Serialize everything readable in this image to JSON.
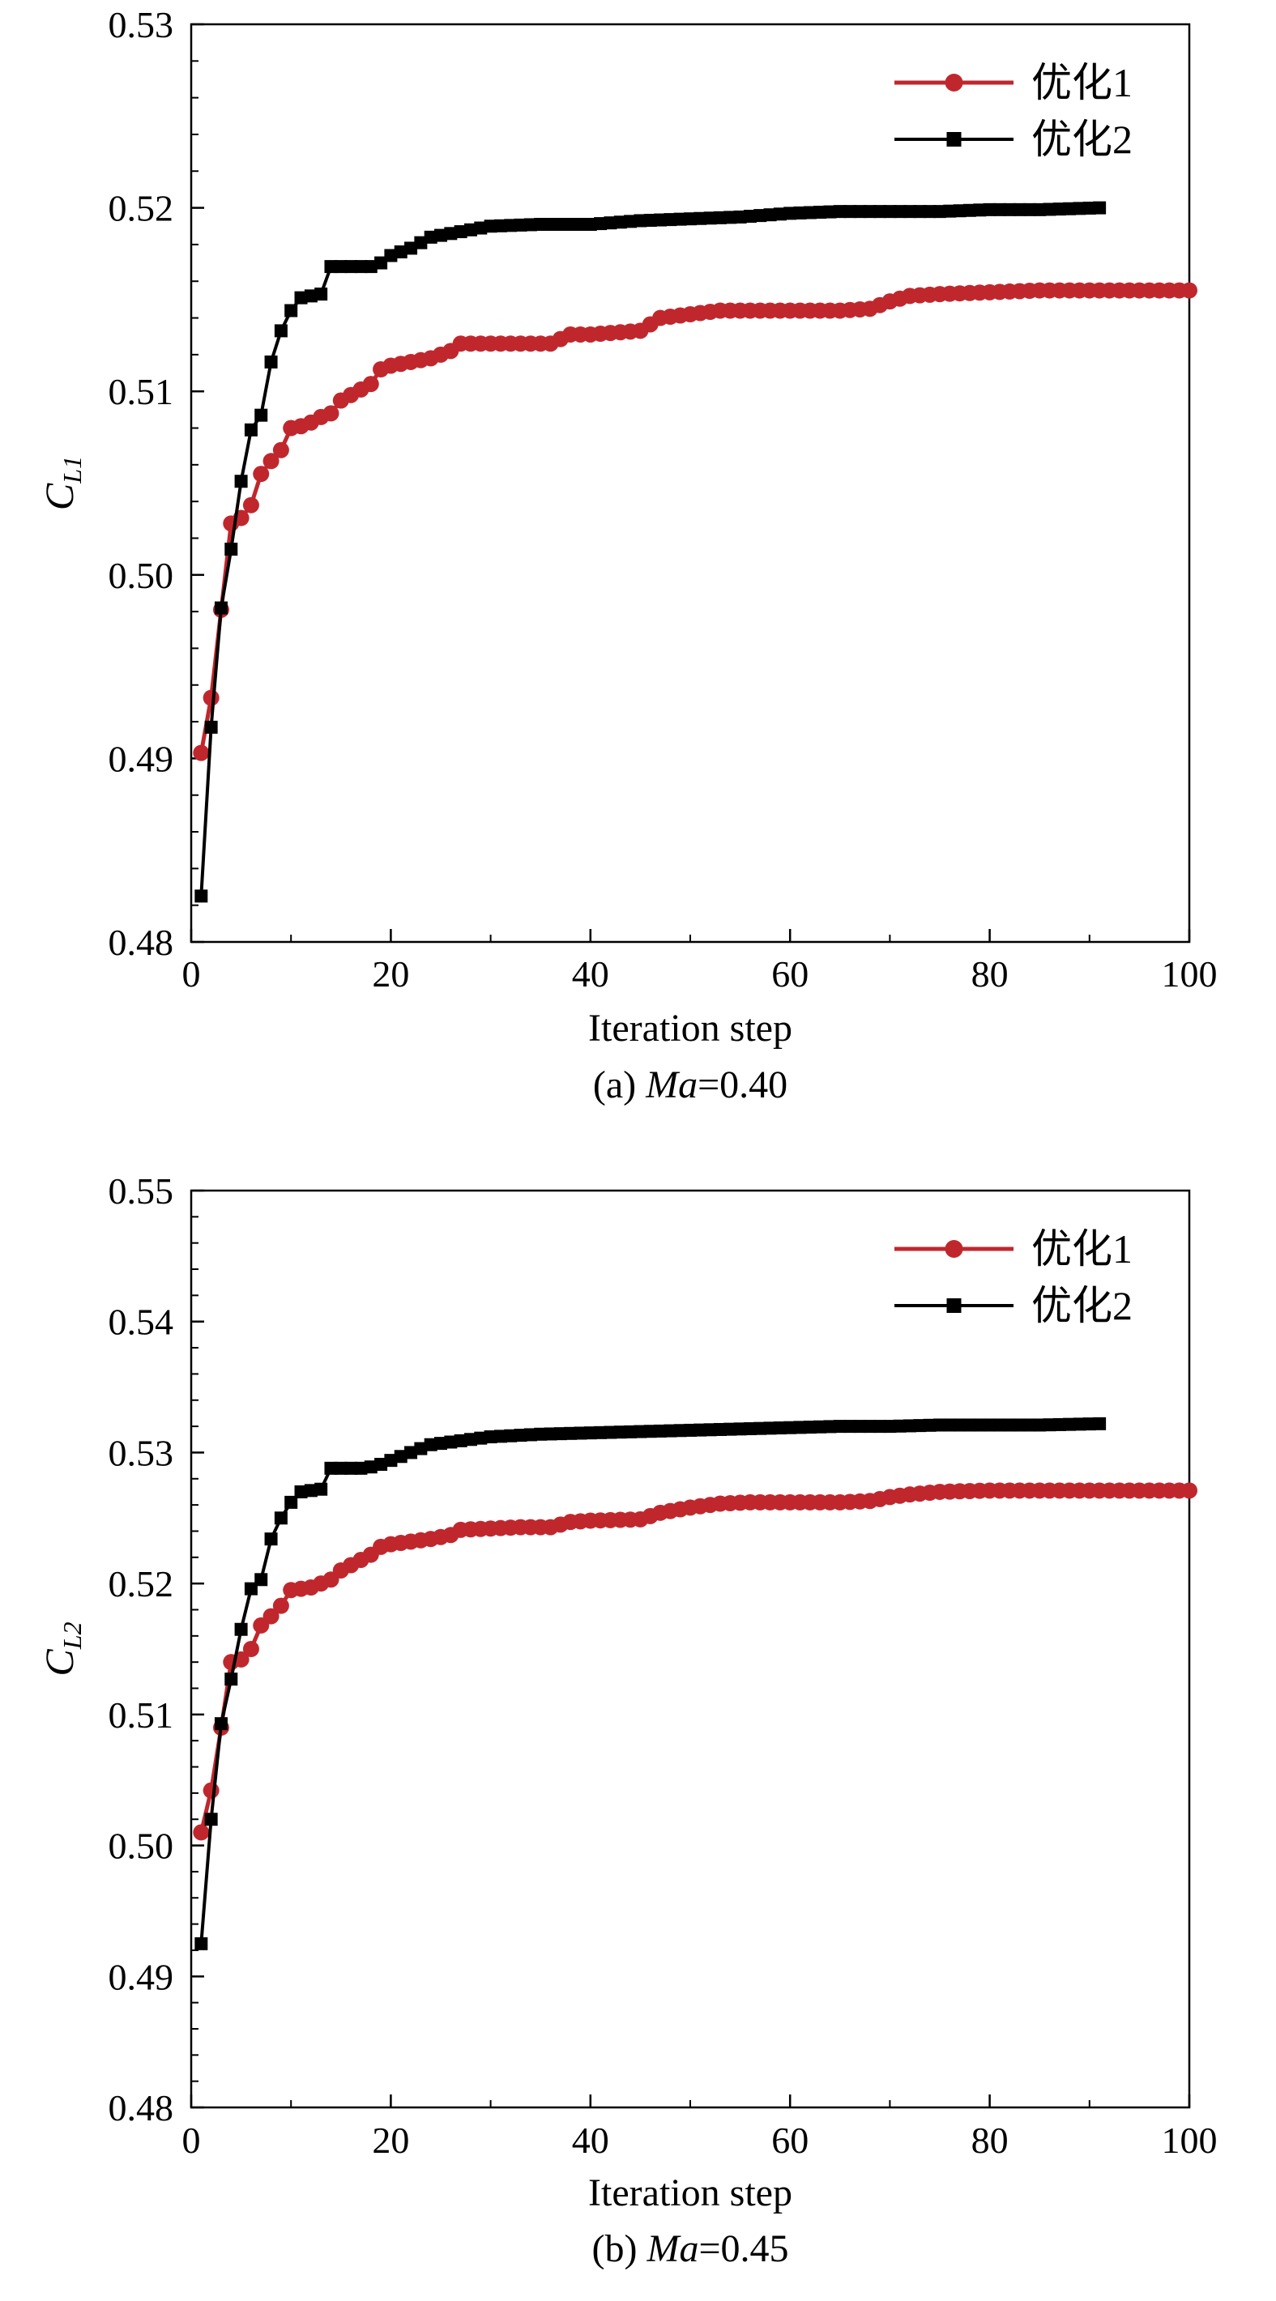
{
  "colors": {
    "series1": "#c0272d",
    "series2": "#000000",
    "axis": "#000000"
  },
  "chart_data": [
    {
      "type": "line",
      "caption_prefix": "(a) ",
      "caption_italic": "Ma",
      "caption_suffix": "=0.40",
      "ylabel_main": "C",
      "ylabel_sub": "L1",
      "xlabel": "Iteration step",
      "xlim": [
        0,
        100
      ],
      "ylim": [
        0.48,
        0.53
      ],
      "xticks": [
        0,
        20,
        40,
        60,
        80,
        100
      ],
      "xtick_labels": [
        "0",
        "20",
        "40",
        "60",
        "80",
        "100"
      ],
      "yticks": [
        0.48,
        0.49,
        0.5,
        0.51,
        0.52,
        0.53
      ],
      "ytick_labels": [
        "0.48",
        "0.49",
        "0.50",
        "0.51",
        "0.52",
        "0.53"
      ],
      "legend_position": "top-right",
      "series": [
        {
          "name": "优化1",
          "marker": "circle",
          "color": "#c0272d",
          "x": [
            1,
            2,
            3,
            4,
            5,
            6,
            7,
            8,
            9,
            10,
            11,
            12,
            13,
            14,
            15,
            16,
            17,
            18,
            19,
            20,
            22,
            24,
            26,
            27,
            30,
            33,
            36,
            38,
            40,
            45,
            47,
            50,
            53,
            56,
            60,
            65,
            68,
            70,
            72,
            75,
            80,
            85,
            90,
            95,
            100
          ],
          "y": [
            0.4903,
            0.4933,
            0.4981,
            0.5028,
            0.5031,
            0.5038,
            0.5055,
            0.5062,
            0.5068,
            0.508,
            0.5081,
            0.5083,
            0.5086,
            0.5088,
            0.5095,
            0.5098,
            0.5101,
            0.5104,
            0.5112,
            0.5114,
            0.5116,
            0.5118,
            0.5122,
            0.5126,
            0.5126,
            0.5126,
            0.5126,
            0.5131,
            0.5131,
            0.5133,
            0.514,
            0.5142,
            0.5144,
            0.5144,
            0.5144,
            0.5144,
            0.5145,
            0.5149,
            0.5152,
            0.5153,
            0.5154,
            0.5155,
            0.5155,
            0.5155,
            0.5155
          ]
        },
        {
          "name": "优化2",
          "marker": "square",
          "color": "#000000",
          "x": [
            1,
            2,
            3,
            4,
            5,
            6,
            7,
            8,
            9,
            10,
            11,
            12,
            13,
            14,
            15,
            16,
            17,
            18,
            19,
            20,
            22,
            24,
            26,
            28,
            30,
            35,
            40,
            45,
            50,
            55,
            60,
            65,
            70,
            75,
            80,
            85,
            91
          ],
          "y": [
            0.4825,
            0.4917,
            0.4982,
            0.5014,
            0.5051,
            0.5079,
            0.5087,
            0.5116,
            0.5133,
            0.5144,
            0.5151,
            0.5152,
            0.5153,
            0.5168,
            0.5168,
            0.5168,
            0.5168,
            0.5168,
            0.517,
            0.5174,
            0.5178,
            0.5184,
            0.5186,
            0.5188,
            0.519,
            0.5191,
            0.5191,
            0.5193,
            0.5194,
            0.5195,
            0.5197,
            0.5198,
            0.5198,
            0.5198,
            0.5199,
            0.5199,
            0.52
          ]
        }
      ]
    },
    {
      "type": "line",
      "caption_prefix": "(b) ",
      "caption_italic": "Ma",
      "caption_suffix": "=0.45",
      "ylabel_main": "C",
      "ylabel_sub": "L2",
      "xlabel": "Iteration step",
      "xlim": [
        0,
        100
      ],
      "ylim": [
        0.48,
        0.55
      ],
      "xticks": [
        0,
        20,
        40,
        60,
        80,
        100
      ],
      "xtick_labels": [
        "0",
        "20",
        "40",
        "60",
        "80",
        "100"
      ],
      "yticks": [
        0.48,
        0.49,
        0.5,
        0.51,
        0.52,
        0.53,
        0.54,
        0.55
      ],
      "ytick_labels": [
        "0.48",
        "0.49",
        "0.50",
        "0.51",
        "0.52",
        "0.53",
        "0.54",
        "0.55"
      ],
      "legend_position": "top-right",
      "series": [
        {
          "name": "优化1",
          "marker": "circle",
          "color": "#c0272d",
          "x": [
            1,
            2,
            3,
            4,
            5,
            6,
            7,
            8,
            9,
            10,
            11,
            12,
            13,
            14,
            15,
            16,
            17,
            18,
            19,
            20,
            22,
            24,
            26,
            27,
            30,
            33,
            36,
            38,
            40,
            45,
            47,
            50,
            53,
            56,
            60,
            65,
            68,
            70,
            72,
            75,
            80,
            85,
            90,
            95,
            100
          ],
          "y": [
            0.501,
            0.5042,
            0.509,
            0.514,
            0.5142,
            0.515,
            0.5168,
            0.5175,
            0.5183,
            0.5195,
            0.5196,
            0.5197,
            0.52,
            0.5203,
            0.521,
            0.5214,
            0.5218,
            0.5222,
            0.5228,
            0.523,
            0.5232,
            0.5234,
            0.5237,
            0.5241,
            0.5242,
            0.5243,
            0.5243,
            0.5247,
            0.5248,
            0.5249,
            0.5254,
            0.5258,
            0.5261,
            0.5262,
            0.5262,
            0.5262,
            0.5263,
            0.5266,
            0.5268,
            0.527,
            0.5271,
            0.5271,
            0.5271,
            0.5271,
            0.5271
          ]
        },
        {
          "name": "优化2",
          "marker": "square",
          "color": "#000000",
          "x": [
            1,
            2,
            3,
            4,
            5,
            6,
            7,
            8,
            9,
            10,
            11,
            12,
            13,
            14,
            15,
            16,
            17,
            18,
            19,
            20,
            22,
            24,
            26,
            28,
            30,
            35,
            40,
            45,
            50,
            55,
            60,
            65,
            70,
            75,
            80,
            85,
            91
          ],
          "y": [
            0.4925,
            0.502,
            0.5093,
            0.5127,
            0.5165,
            0.5196,
            0.5203,
            0.5234,
            0.525,
            0.5262,
            0.527,
            0.5271,
            0.5272,
            0.5288,
            0.5288,
            0.5288,
            0.5288,
            0.5289,
            0.5291,
            0.5294,
            0.53,
            0.5306,
            0.5308,
            0.531,
            0.5312,
            0.5314,
            0.5315,
            0.5316,
            0.5317,
            0.5318,
            0.5319,
            0.532,
            0.532,
            0.5321,
            0.5321,
            0.5321,
            0.5322
          ]
        }
      ]
    }
  ]
}
